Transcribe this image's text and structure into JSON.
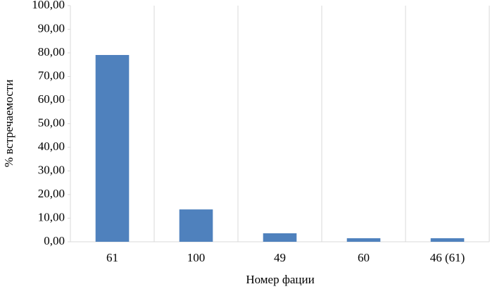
{
  "chart_data": {
    "type": "bar",
    "x_label": "Номер фации",
    "y_label": "% встречаемости",
    "categories": [
      "61",
      "100",
      "49",
      "60",
      "46 (61)"
    ],
    "values": [
      79.1,
      13.7,
      3.6,
      1.5,
      1.5
    ],
    "color": "#4f81bd",
    "ylim": [
      0,
      100
    ],
    "yticks": [
      {
        "value": 0,
        "label": "0,00"
      },
      {
        "value": 10,
        "label": "10,00"
      },
      {
        "value": 20,
        "label": "20,00"
      },
      {
        "value": 30,
        "label": "30,00"
      },
      {
        "value": 40,
        "label": "40,00"
      },
      {
        "value": 50,
        "label": "50,00"
      },
      {
        "value": 60,
        "label": "60,00"
      },
      {
        "value": 70,
        "label": "70,00"
      },
      {
        "value": 80,
        "label": "80,00"
      },
      {
        "value": 90,
        "label": "90,00"
      },
      {
        "value": 100,
        "label": "100,00"
      }
    ],
    "grid": true
  }
}
